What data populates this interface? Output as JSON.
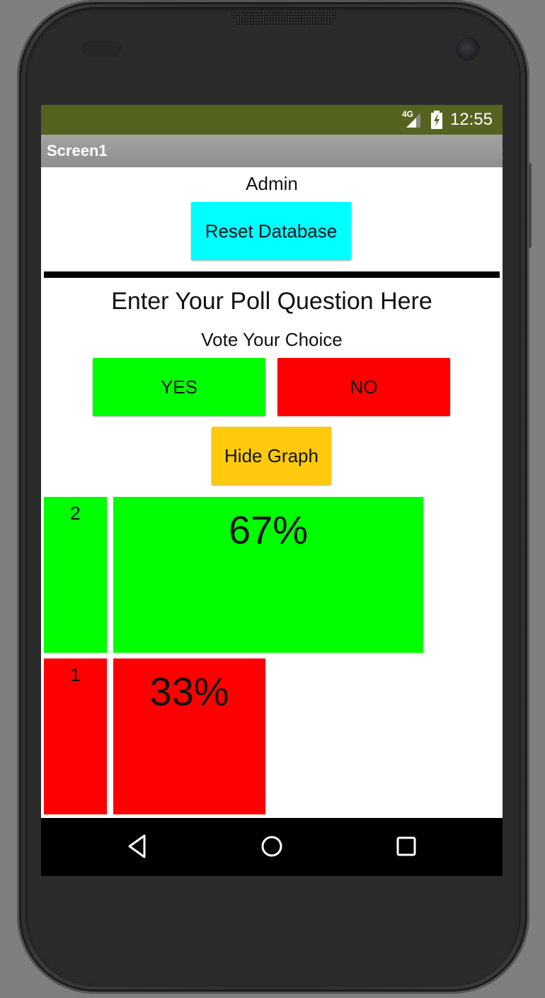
{
  "status_bar": {
    "network": "4G",
    "time": "12:55"
  },
  "app": {
    "title": "Screen1"
  },
  "admin": {
    "label": "Admin",
    "reset_button": "Reset Database"
  },
  "poll": {
    "question": "Enter Your Poll Question Here",
    "vote_label": "Vote Your Choice",
    "yes_button": "YES",
    "no_button": "NO",
    "hide_graph_button": "Hide Graph"
  },
  "results": [
    {
      "choice": "YES",
      "count": "2",
      "percent_label": "67%",
      "percent": 67,
      "color": "#00ff00"
    },
    {
      "choice": "NO",
      "count": "1",
      "percent_label": "33%",
      "percent": 33,
      "color": "#ff0000"
    }
  ],
  "colors": {
    "status_bar": "#556321",
    "reset_button": "#00ffff",
    "yes": "#00ff00",
    "no": "#ff0000",
    "hide_graph": "#ffc90e"
  },
  "nav": {
    "back": "back-icon",
    "home": "home-icon",
    "recents": "recents-icon"
  }
}
